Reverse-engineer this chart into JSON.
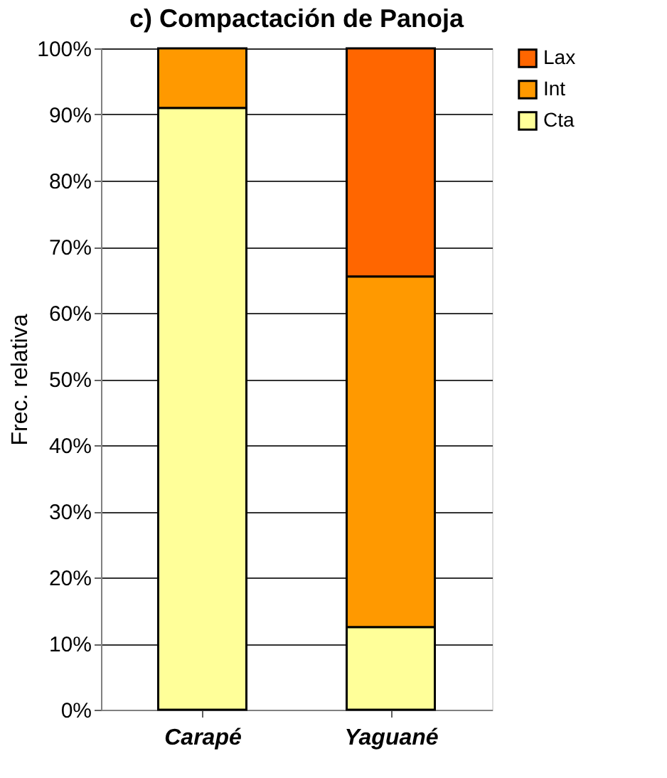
{
  "chart_data": {
    "type": "bar",
    "title": "c)  Compactación de Panoja",
    "ylabel": "Frec. relativa",
    "categories": [
      "Carapé",
      "Yaguané"
    ],
    "stacked": true,
    "series": [
      {
        "name": "Cta",
        "color": "#ffff99",
        "values": [
          91,
          12.5
        ]
      },
      {
        "name": "Int",
        "color": "#ff9900",
        "values": [
          9,
          53
        ]
      },
      {
        "name": "Lax",
        "color": "#ff6600",
        "values": [
          null,
          34.5
        ]
      }
    ],
    "ylim": [
      0,
      100
    ],
    "yticks": [
      {
        "value": 0,
        "label": "0%"
      },
      {
        "value": 10,
        "label": "10%"
      },
      {
        "value": 20,
        "label": "20%"
      },
      {
        "value": 30,
        "label": "30%"
      },
      {
        "value": 40,
        "label": "40%"
      },
      {
        "value": 50,
        "label": "50%"
      },
      {
        "value": 60,
        "label": "60%"
      },
      {
        "value": 70,
        "label": "70%"
      },
      {
        "value": 80,
        "label": "80%"
      },
      {
        "value": 90,
        "label": "90%"
      },
      {
        "value": 100,
        "label": "100%"
      }
    ],
    "grid": "y",
    "legend": "right"
  }
}
